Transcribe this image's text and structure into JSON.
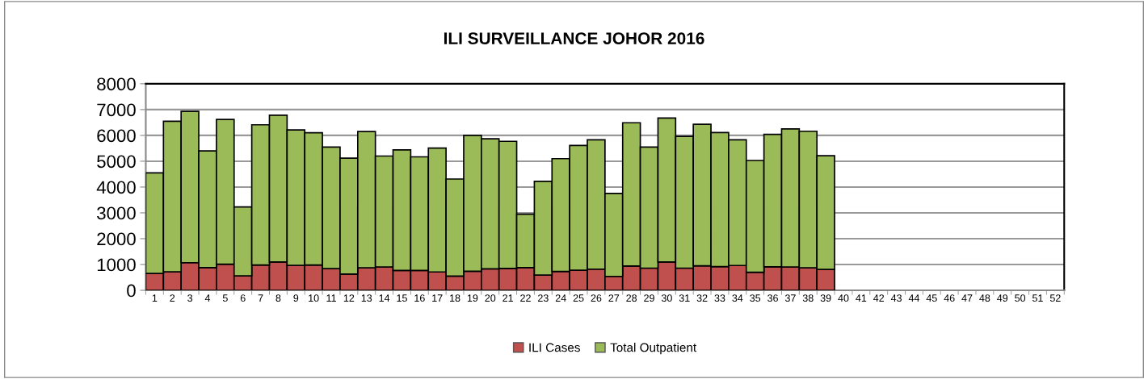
{
  "chart_data": {
    "type": "bar",
    "title": "ILI SURVEILLANCE JOHOR 2016",
    "stacked": true,
    "categories": [
      "1",
      "2",
      "3",
      "4",
      "5",
      "6",
      "7",
      "8",
      "9",
      "10",
      "11",
      "12",
      "13",
      "14",
      "15",
      "16",
      "17",
      "18",
      "19",
      "20",
      "21",
      "22",
      "23",
      "24",
      "25",
      "26",
      "27",
      "28",
      "29",
      "30",
      "31",
      "32",
      "33",
      "34",
      "35",
      "36",
      "37",
      "38",
      "39",
      "40",
      "41",
      "42",
      "43",
      "44",
      "45",
      "46",
      "47",
      "48",
      "49",
      "50",
      "51",
      "52"
    ],
    "series": [
      {
        "name": "ILI Cases",
        "color": "#c0504d",
        "values": [
          650,
          720,
          1070,
          880,
          1010,
          560,
          980,
          1100,
          970,
          980,
          840,
          630,
          870,
          900,
          770,
          770,
          710,
          550,
          740,
          830,
          850,
          880,
          590,
          730,
          780,
          820,
          540,
          940,
          860,
          1100,
          860,
          950,
          920,
          960,
          700,
          910,
          900,
          870,
          810,
          null,
          null,
          null,
          null,
          null,
          null,
          null,
          null,
          null,
          null,
          null,
          null,
          null
        ]
      },
      {
        "name": "Total Outpatient",
        "color": "#9bbb59",
        "values": [
          3900,
          5830,
          5860,
          4520,
          5610,
          2670,
          5430,
          5680,
          5240,
          5120,
          4710,
          4490,
          5280,
          4300,
          4670,
          4400,
          4800,
          3760,
          5260,
          5040,
          4920,
          2070,
          3630,
          4370,
          4830,
          5010,
          3210,
          5550,
          4690,
          5570,
          5100,
          5480,
          5190,
          4870,
          4330,
          5130,
          5350,
          5290,
          4400,
          null,
          null,
          null,
          null,
          null,
          null,
          null,
          null,
          null,
          null,
          null,
          null,
          null
        ]
      }
    ],
    "ylim": [
      0,
      8000
    ],
    "yticks": [
      0,
      1000,
      2000,
      3000,
      4000,
      5000,
      6000,
      7000,
      8000
    ],
    "grid": "y",
    "legend": "bottom"
  }
}
